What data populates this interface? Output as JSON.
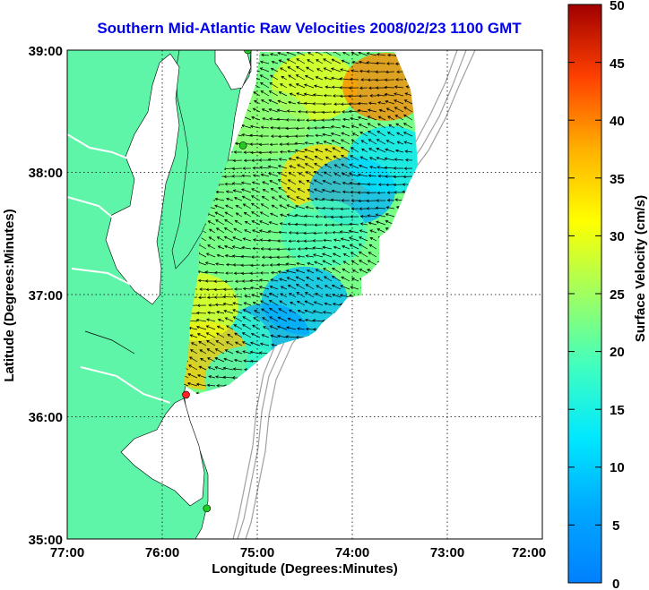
{
  "title": "Southern Mid-Atlantic Raw Velocities 2008/02/23 1100 GMT",
  "x_axis": {
    "label": "Longitude (Degrees:Minutes)",
    "ticks": [
      "77:00",
      "76:00",
      "75:00",
      "74:00",
      "73:00",
      "72:00"
    ]
  },
  "y_axis": {
    "label": "Latitude (Degrees:Minutes)",
    "ticks": [
      "39:00",
      "38:00",
      "37:00",
      "36:00",
      "35:00"
    ]
  },
  "colorbar": {
    "label": "Surface Velocity (cm/s)",
    "ticks": [
      "50",
      "45",
      "40",
      "35",
      "30",
      "25",
      "20",
      "15",
      "10",
      "5",
      "0"
    ],
    "min": 0,
    "max": 50,
    "colormap": "jet"
  },
  "map_data": {
    "projection": "lon-lat",
    "lon_range": [
      -77,
      -72
    ],
    "lat_range": [
      35,
      39
    ],
    "land_color": "#5ff5a8",
    "water_color": "#ffffff",
    "bathymetry_color": "#a0a0a0",
    "grid": "dotted",
    "radar_sites": [
      {
        "color": "#22cc22",
        "lon": -75.1,
        "lat": 39.0
      },
      {
        "color": "#22cc22",
        "lon": -75.15,
        "lat": 38.22
      },
      {
        "color": "#ff2020",
        "lon": -75.75,
        "lat": 36.18
      },
      {
        "color": "#22cc22",
        "lon": -75.53,
        "lat": 35.25
      }
    ],
    "speed_patches": [
      {
        "lon": -74.4,
        "lat": 38.7,
        "speed": 30
      },
      {
        "lon": -73.65,
        "lat": 38.7,
        "speed": 40
      },
      {
        "lon": -74.9,
        "lat": 38.4,
        "speed": 24
      },
      {
        "lon": -74.3,
        "lat": 37.95,
        "speed": 34
      },
      {
        "lon": -74.0,
        "lat": 37.85,
        "speed": 7
      },
      {
        "lon": -73.6,
        "lat": 38.1,
        "speed": 12
      },
      {
        "lon": -74.8,
        "lat": 37.4,
        "speed": 22
      },
      {
        "lon": -74.5,
        "lat": 36.95,
        "speed": 8
      },
      {
        "lon": -74.9,
        "lat": 36.65,
        "speed": 6
      },
      {
        "lon": -75.3,
        "lat": 36.6,
        "speed": 18
      },
      {
        "lon": -75.55,
        "lat": 36.5,
        "speed": 36
      },
      {
        "lon": -75.1,
        "lat": 36.3,
        "speed": 18
      },
      {
        "lon": -74.3,
        "lat": 37.5,
        "speed": 19
      },
      {
        "lon": -75.65,
        "lat": 36.9,
        "speed": 30
      }
    ]
  }
}
